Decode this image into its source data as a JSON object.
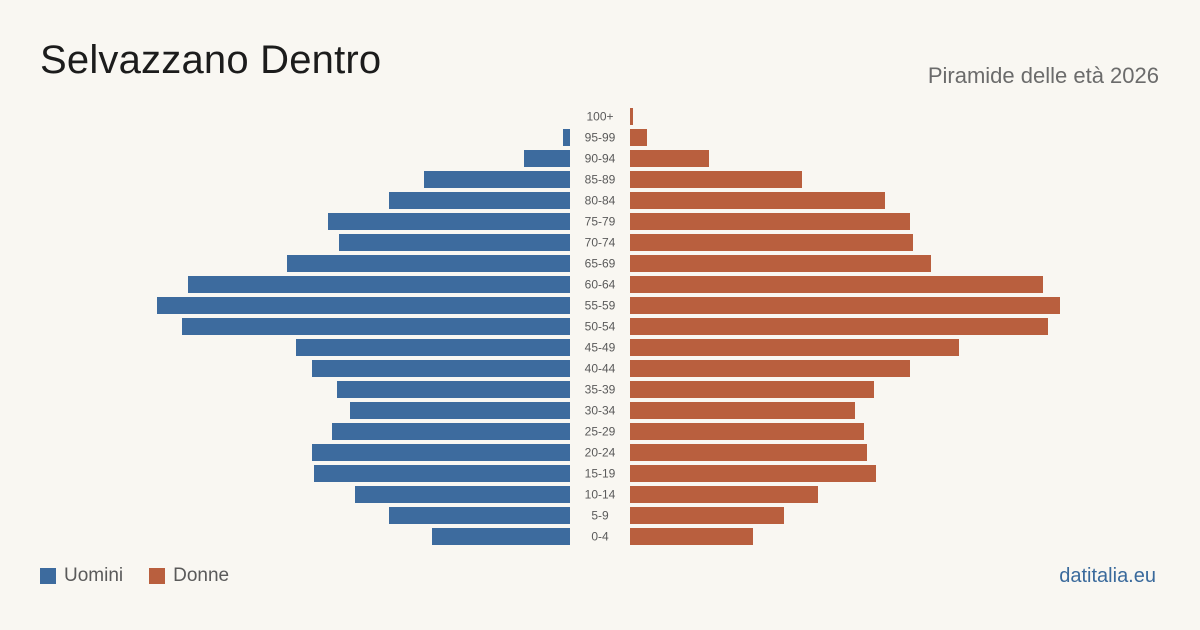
{
  "header": {
    "title": "Selvazzano Dentro",
    "subtitle": "Piramide delle età 2026"
  },
  "legend": {
    "men_label": "Uomini",
    "women_label": "Donne"
  },
  "footer": {
    "source": "datitalia.eu"
  },
  "colors": {
    "men": "#3d6b9e",
    "women": "#b95f3e",
    "background": "#f9f7f2"
  },
  "chart_data": {
    "type": "bar",
    "orientation": "horizontal-pyramid",
    "categories": [
      "100+",
      "95-99",
      "90-94",
      "85-89",
      "80-84",
      "75-79",
      "70-74",
      "65-69",
      "60-64",
      "55-59",
      "50-54",
      "45-49",
      "40-44",
      "35-39",
      "30-34",
      "25-29",
      "20-24",
      "15-19",
      "10-14",
      "5-9",
      "0-4"
    ],
    "series": [
      {
        "name": "Uomini",
        "values": [
          0,
          7,
          46,
          146,
          181,
          242,
          231,
          283,
          382,
          413,
          388,
          274,
          258,
          233,
          220,
          238,
          258,
          256,
          215,
          181,
          138
        ]
      },
      {
        "name": "Donne",
        "values": [
          3,
          17,
          79,
          172,
          255,
          280,
          283,
          301,
          413,
          430,
          418,
          329,
          280,
          244,
          225,
          234,
          237,
          246,
          188,
          154,
          123
        ]
      }
    ],
    "xlim": [
      0,
      430
    ],
    "legend_position": "bottom-left",
    "grid": false
  }
}
